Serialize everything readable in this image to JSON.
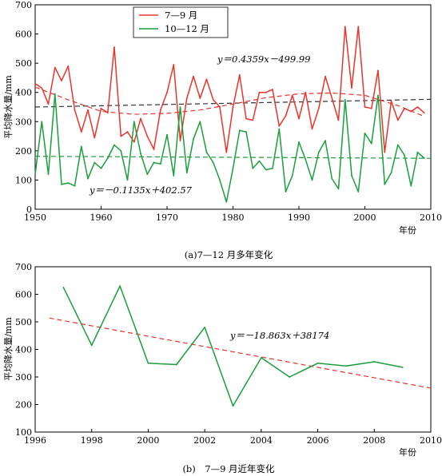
{
  "chart_data": [
    {
      "type": "line",
      "caption": "(a)7—12 月多年变化",
      "xlabel": "年份",
      "ylabel": "平均降水量/mm",
      "xlim": [
        1950,
        2010
      ],
      "ylim": [
        0,
        700
      ],
      "xticks": [
        1950,
        1960,
        1970,
        1980,
        1990,
        2000,
        2010
      ],
      "yticks": [
        0,
        100,
        200,
        300,
        400,
        500,
        600,
        700
      ],
      "grid": false,
      "legend_position": "top-left",
      "series": [
        {
          "name": "7—9 月",
          "color": "#e8342c",
          "x": [
            1950,
            1951,
            1952,
            1953,
            1954,
            1955,
            1956,
            1957,
            1958,
            1959,
            1960,
            1961,
            1962,
            1963,
            1964,
            1965,
            1966,
            1967,
            1968,
            1969,
            1970,
            1971,
            1972,
            1973,
            1974,
            1975,
            1976,
            1977,
            1978,
            1979,
            1980,
            1981,
            1982,
            1983,
            1984,
            1985,
            1986,
            1987,
            1988,
            1989,
            1990,
            1991,
            1992,
            1993,
            1994,
            1995,
            1996,
            1997,
            1998,
            1999,
            2000,
            2001,
            2002,
            2003,
            2004,
            2005,
            2006,
            2007,
            2008,
            2009
          ],
          "values": [
            430,
            415,
            360,
            485,
            440,
            490,
            340,
            265,
            340,
            245,
            345,
            330,
            555,
            250,
            265,
            230,
            310,
            250,
            205,
            340,
            400,
            495,
            235,
            380,
            455,
            380,
            445,
            375,
            350,
            195,
            350,
            460,
            310,
            305,
            400,
            400,
            410,
            285,
            320,
            390,
            310,
            400,
            275,
            345,
            455,
            380,
            305,
            625,
            415,
            625,
            350,
            345,
            475,
            195,
            370,
            305,
            345,
            335,
            350,
            330
          ]
        },
        {
          "name": "10—12 月",
          "color": "#1a9f3c",
          "x": [
            1950,
            1951,
            1952,
            1953,
            1954,
            1955,
            1956,
            1957,
            1958,
            1959,
            1960,
            1961,
            1962,
            1963,
            1964,
            1965,
            1966,
            1967,
            1968,
            1969,
            1970,
            1971,
            1972,
            1973,
            1974,
            1975,
            1976,
            1977,
            1978,
            1979,
            1980,
            1981,
            1982,
            1983,
            1984,
            1985,
            1986,
            1987,
            1988,
            1989,
            1990,
            1991,
            1992,
            1993,
            1994,
            1995,
            1996,
            1997,
            1998,
            1999,
            2000,
            2001,
            2002,
            2003,
            2004,
            2005,
            2006,
            2007,
            2008,
            2009
          ],
          "values": [
            120,
            300,
            120,
            395,
            85,
            90,
            80,
            215,
            105,
            160,
            140,
            175,
            220,
            200,
            100,
            300,
            190,
            120,
            160,
            155,
            255,
            115,
            350,
            125,
            240,
            300,
            195,
            160,
            100,
            25,
            140,
            270,
            265,
            140,
            165,
            135,
            140,
            275,
            60,
            115,
            230,
            170,
            100,
            195,
            235,
            105,
            70,
            375,
            115,
            60,
            260,
            225,
            390,
            85,
            125,
            220,
            185,
            80,
            195,
            175
          ]
        }
      ],
      "trend_lines": [
        {
          "label": "y＝0.4359x－499.99",
          "series": "7—9 月",
          "style": "dashed",
          "color": "#333333",
          "slope": 0.4359,
          "intercept": -499.99
        },
        {
          "label": "y＝－0.1135x＋402.57",
          "series": "10—12 月",
          "style": "dashed",
          "color": "#1a9f3c",
          "slope": -0.1135,
          "intercept": 402.57
        },
        {
          "label": "",
          "series": "7—9 月",
          "style": "dashed smooth",
          "color": "#e8342c",
          "x": [
            1950,
            1955,
            1960,
            1965,
            1970,
            1975,
            1980,
            1985,
            1990,
            1995,
            2000,
            2005,
            2009
          ],
          "values": [
            418,
            375,
            335,
            325,
            328,
            340,
            360,
            382,
            395,
            398,
            390,
            355,
            318
          ]
        }
      ]
    },
    {
      "type": "line",
      "caption": "(b)　7—9 月近年变化",
      "xlabel": "年份",
      "ylabel": "平均降水量/mm",
      "xlim": [
        1996,
        2010
      ],
      "ylim": [
        100,
        700
      ],
      "xticks": [
        1996,
        1998,
        2000,
        2002,
        2004,
        2006,
        2008,
        2010
      ],
      "yticks": [
        100,
        200,
        300,
        400,
        500,
        600,
        700
      ],
      "grid": false,
      "series": [
        {
          "name": "",
          "color": "#1a9f3c",
          "x": [
            1997,
            1998,
            1999,
            2000,
            2001,
            2002,
            2003,
            2004,
            2005,
            2006,
            2007,
            2008,
            2009
          ],
          "values": [
            625,
            415,
            630,
            350,
            345,
            480,
            195,
            370,
            300,
            350,
            340,
            355,
            335
          ]
        }
      ],
      "trend_lines": [
        {
          "label": "y＝－18.863x＋38174",
          "style": "dashed",
          "color": "#e8342c",
          "slope": -18.863,
          "intercept": 38174
        }
      ]
    }
  ]
}
